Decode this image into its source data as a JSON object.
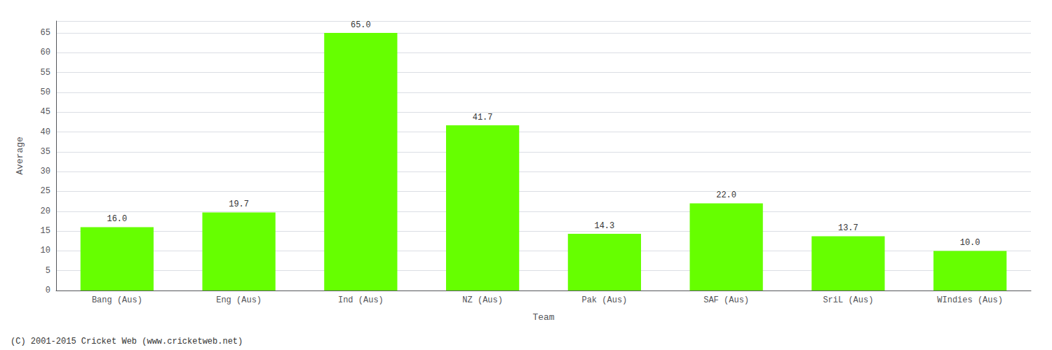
{
  "chart_data": {
    "type": "bar",
    "categories": [
      "Bang (Aus)",
      "Eng (Aus)",
      "Ind (Aus)",
      "NZ (Aus)",
      "Pak (Aus)",
      "SAF (Aus)",
      "SriL (Aus)",
      "WIndies (Aus)"
    ],
    "values": [
      16.0,
      19.7,
      65.0,
      41.7,
      14.3,
      22.0,
      13.7,
      10.0
    ],
    "value_labels": [
      "16.0",
      "19.7",
      "65.0",
      "41.7",
      "14.3",
      "22.0",
      "13.7",
      "10.0"
    ],
    "data_labels": true,
    "color": "#66ff00",
    "xlabel": "Team",
    "ylabel": "Average",
    "ylim": [
      0,
      68
    ],
    "yticks": [
      0,
      5,
      10,
      15,
      20,
      25,
      30,
      35,
      40,
      45,
      50,
      55,
      60,
      65
    ],
    "grid": true,
    "annotations": [
      "(C) 2001-2015 Cricket Web (www.cricketweb.net)"
    ]
  }
}
